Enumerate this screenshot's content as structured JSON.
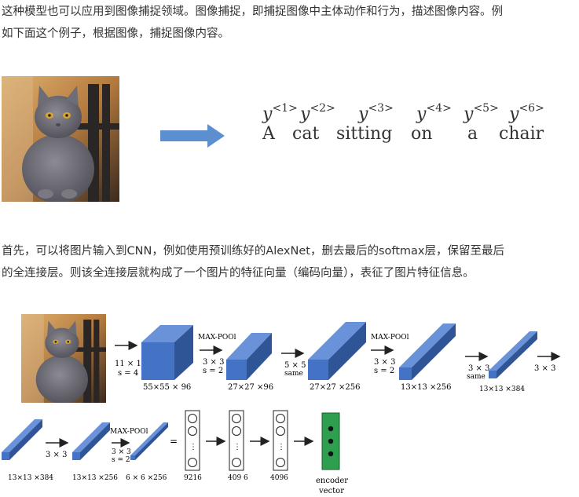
{
  "intro": {
    "line1": "这种模型也可以应用到图像捕捉领域。图像捕捉，即捕捉图像中主体动作和行为，描述图像内容。例",
    "line2": "如下面这个例子，根据图像，捕捉图像内容。"
  },
  "caption": {
    "tokens": [
      {
        "label": "y",
        "index": "<1>",
        "word": "A"
      },
      {
        "label": "y",
        "index": "<2>",
        "word": "cat"
      },
      {
        "label": "y",
        "index": "<3>",
        "word": "sitting"
      },
      {
        "label": "y",
        "index": "<4>",
        "word": "on"
      },
      {
        "label": "y",
        "index": "<5>",
        "word": "a"
      },
      {
        "label": "y",
        "index": "<6>",
        "word": "chair"
      }
    ]
  },
  "cnn_text": {
    "line1": "首先，可以将图片输入到CNN，例如使用预训练好的AlexNet，删去最后的softmax层，保留至最后",
    "line2": "的全连接层。则该全连接层就构成了一个图片的特征向量（编码向量），表征了图片特征信息。"
  },
  "network": {
    "conv1": {
      "kernel": "11 × 11",
      "stride": "s = 4",
      "size": "55×55 × 96"
    },
    "pool1": {
      "title": "MAX-POOl",
      "kernel": "3 × 3",
      "stride": "s = 2",
      "size": "27×27 ×96"
    },
    "conv2": {
      "kernel": "5 × 5",
      "pad": "same",
      "size": "27×27 ×256"
    },
    "pool2": {
      "title": "MAX-POOl",
      "kernel": "3 × 3",
      "stride": "s = 2",
      "size": "13×13 ×256"
    },
    "conv3": {
      "kernel": "3 × 3",
      "pad": "same",
      "size": "13×13 ×384"
    },
    "conv4": {
      "kernel": "3 × 3"
    },
    "row2_block1": {
      "size": "13×13 ×384"
    },
    "conv5": {
      "kernel": "3 × 3"
    },
    "row2_block2": {
      "size": "13×13 ×256"
    },
    "pool3": {
      "title": "MAX-POOl",
      "kernel": "3 × 3",
      "stride": "s = 2",
      "size": "6 × 6 ×256"
    },
    "equals": "=",
    "fc": [
      {
        "dots": "⋮",
        "size": "9216"
      },
      {
        "dots": "⋮",
        "size": "409 6"
      },
      {
        "dots": "⋮",
        "size": "4096"
      }
    ],
    "encoder": {
      "line1": "encoder",
      "line2": "vector"
    }
  },
  "colors": {
    "block_front": "#4472c4",
    "block_top": "#6a92d8",
    "block_side": "#2f5597",
    "arrow_fill": "#5b8fd0",
    "encoder_green": "#2e9e4f"
  }
}
